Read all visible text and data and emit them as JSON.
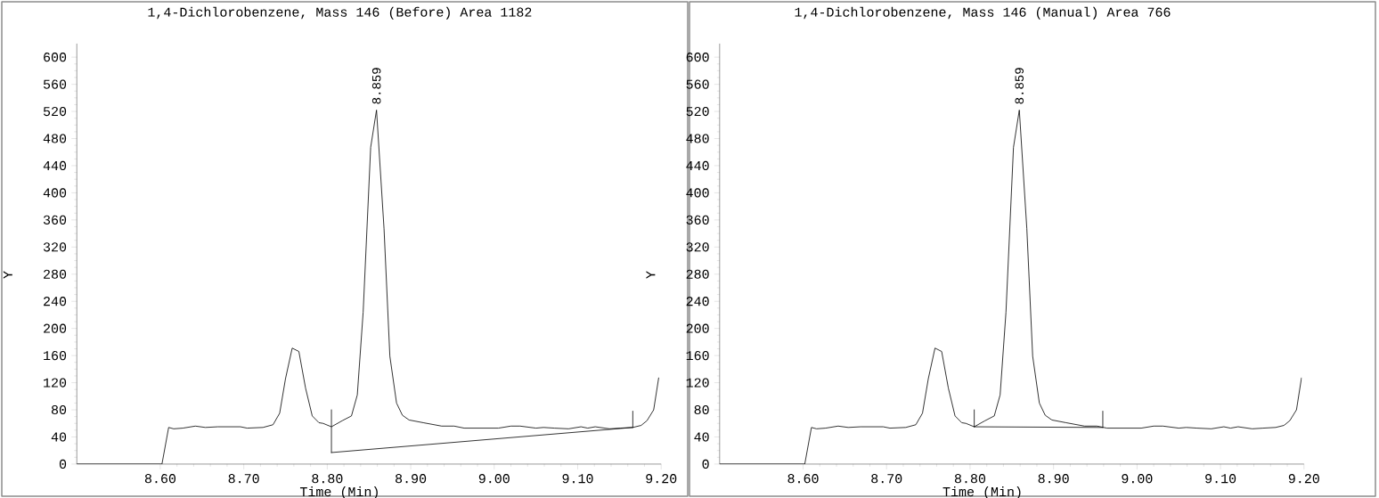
{
  "chart_data": [
    {
      "type": "line",
      "title": "1,4-Dichlorobenzene, Mass 146 (Before) Area 1182",
      "xlabel": "Time (Min)",
      "ylabel": "Y",
      "xlim": [
        8.5,
        9.2
      ],
      "ylim": [
        0,
        620
      ],
      "xticks": [
        {
          "value": 8.6,
          "label": "8.60"
        },
        {
          "value": 8.7,
          "label": "8.70"
        },
        {
          "value": 8.8,
          "label": "8.80"
        },
        {
          "value": 8.9,
          "label": "8.90"
        },
        {
          "value": 9.0,
          "label": "9.00"
        },
        {
          "value": 9.1,
          "label": "9.10"
        },
        {
          "value": 9.2,
          "label": "9.20"
        }
      ],
      "yticks": [
        0,
        40,
        80,
        120,
        160,
        200,
        240,
        280,
        320,
        360,
        400,
        440,
        480,
        520,
        560,
        600
      ],
      "grid": false,
      "line_style": "solid",
      "series": [
        {
          "color": "#000000",
          "x": [
            8.5,
            8.602,
            8.61,
            8.616,
            8.627,
            8.642,
            8.654,
            8.669,
            8.696,
            8.704,
            8.723,
            8.735,
            8.743,
            8.75,
            8.758,
            8.766,
            8.774,
            8.782,
            8.79,
            8.795,
            8.805,
            8.818,
            8.829,
            8.836,
            8.843,
            8.852,
            8.859,
            8.868,
            8.875,
            8.883,
            8.89,
            8.898,
            8.915,
            8.937,
            8.952,
            8.964,
            9.005,
            9.02,
            9.031,
            9.05,
            9.059,
            9.072,
            9.089,
            9.104,
            9.112,
            9.121,
            9.138,
            9.151,
            9.166,
            9.176,
            9.183,
            9.191,
            9.197
          ],
          "values": [
            0,
            0,
            54,
            52,
            53,
            56,
            54,
            55,
            55,
            53,
            54,
            58,
            75,
            126,
            171,
            166,
            112,
            71,
            61,
            60,
            55,
            64,
            71,
            102,
            224,
            467,
            522,
            347,
            159,
            90,
            72,
            65,
            61,
            56,
            56,
            53,
            53,
            56,
            56,
            53,
            54,
            53,
            52,
            55,
            53,
            55,
            52,
            53,
            54,
            57,
            64,
            80,
            127
          ]
        },
        {
          "color": "#000000",
          "x": [
            8.805,
            9.166
          ],
          "values": [
            17,
            54
          ]
        },
        {
          "color": "#000000",
          "x": [
            8.805,
            8.805
          ],
          "values": [
            17,
            80
          ]
        },
        {
          "color": "#000000",
          "x": [
            9.166,
            9.166
          ],
          "values": [
            54,
            78
          ]
        }
      ],
      "annotations": [
        {
          "text": "8.859",
          "x": 8.859,
          "y": 522
        }
      ]
    },
    {
      "type": "line",
      "title": "1,4-Dichlorobenzene, Mass 146 (Manual) Area 766",
      "xlabel": "Time (Min)",
      "ylabel": "Y",
      "xlim": [
        8.5,
        9.2
      ],
      "ylim": [
        0,
        620
      ],
      "xticks": [
        {
          "value": 8.6,
          "label": "8.60"
        },
        {
          "value": 8.7,
          "label": "8.70"
        },
        {
          "value": 8.8,
          "label": "8.80"
        },
        {
          "value": 8.9,
          "label": "8.90"
        },
        {
          "value": 9.0,
          "label": "9.00"
        },
        {
          "value": 9.1,
          "label": "9.10"
        },
        {
          "value": 9.2,
          "label": "9.20"
        }
      ],
      "yticks": [
        0,
        40,
        80,
        120,
        160,
        200,
        240,
        280,
        320,
        360,
        400,
        440,
        480,
        520,
        560,
        600
      ],
      "grid": false,
      "line_style": "solid",
      "series": [
        {
          "color": "#000000",
          "x": [
            8.5,
            8.602,
            8.61,
            8.616,
            8.627,
            8.642,
            8.654,
            8.669,
            8.696,
            8.704,
            8.723,
            8.735,
            8.743,
            8.75,
            8.758,
            8.766,
            8.774,
            8.782,
            8.79,
            8.795,
            8.805,
            8.818,
            8.829,
            8.836,
            8.843,
            8.852,
            8.859,
            8.868,
            8.875,
            8.883,
            8.89,
            8.898,
            8.915,
            8.937,
            8.952,
            8.964,
            9.005,
            9.02,
            9.031,
            9.05,
            9.059,
            9.072,
            9.089,
            9.104,
            9.112,
            9.121,
            9.138,
            9.151,
            9.166,
            9.176,
            9.183,
            9.191,
            9.197
          ],
          "values": [
            0,
            0,
            54,
            52,
            53,
            56,
            54,
            55,
            55,
            53,
            54,
            58,
            75,
            126,
            171,
            166,
            112,
            71,
            61,
            60,
            55,
            64,
            71,
            102,
            224,
            467,
            522,
            347,
            159,
            90,
            72,
            65,
            61,
            56,
            56,
            53,
            53,
            56,
            56,
            53,
            54,
            53,
            52,
            55,
            53,
            55,
            52,
            53,
            54,
            57,
            64,
            80,
            127
          ]
        },
        {
          "color": "#000000",
          "x": [
            8.805,
            8.959
          ],
          "values": [
            55,
            54
          ]
        },
        {
          "color": "#000000",
          "x": [
            8.805,
            8.805
          ],
          "values": [
            55,
            80
          ]
        },
        {
          "color": "#000000",
          "x": [
            8.959,
            8.959
          ],
          "values": [
            54,
            78
          ]
        }
      ],
      "annotations": [
        {
          "text": "8.859",
          "x": 8.859,
          "y": 522
        }
      ]
    }
  ]
}
